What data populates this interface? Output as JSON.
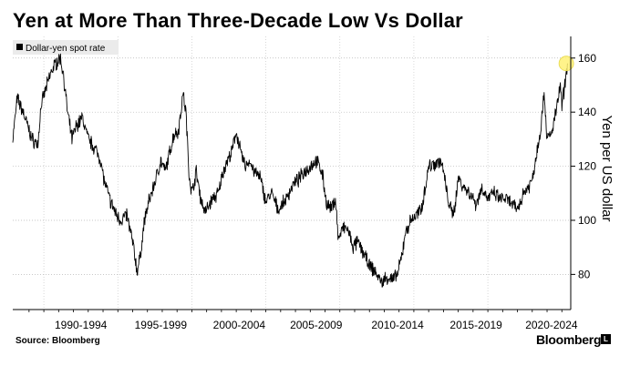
{
  "title": "Yen at More Than Three-Decade Low Vs Dollar",
  "source": "Source: Bloomberg",
  "brand": "Bloomberg",
  "brand_badge": "L",
  "chart_data": {
    "type": "line",
    "title": "Yen at More Than Three-Decade Low Vs Dollar",
    "ylabel": "Yen per US dollar",
    "xlabel": "",
    "ylim": [
      67,
      168
    ],
    "xlim": [
      1986.9,
      2024.6
    ],
    "yticks": [
      80,
      100,
      120,
      140,
      160
    ],
    "xtick_labels": [
      "1990-1994",
      "1995-1999",
      "2000-2004",
      "2005-2009",
      "2010-2014",
      "2015-2019",
      "2020-2024"
    ],
    "xtick_centers": [
      1991.5,
      1996.9,
      2002.2,
      2007.4,
      2012.9,
      2018.2,
      2023.3
    ],
    "grid": true,
    "legend": {
      "position": "top-left",
      "entries": [
        "Dollar-yen spot rate"
      ]
    },
    "highlight": {
      "x": 2024.3,
      "y": 158,
      "color": "#fff176"
    },
    "series": [
      {
        "name": "Dollar-yen spot rate",
        "color": "#000000",
        "x": [
          1986.9,
          1987.2,
          1987.6,
          1987.9,
          1988.2,
          1988.6,
          1988.8,
          1989.1,
          1989.5,
          1989.8,
          1990.1,
          1990.3,
          1990.6,
          1990.9,
          1991.2,
          1991.6,
          1992.0,
          1992.4,
          1992.8,
          1993.1,
          1993.5,
          1993.9,
          1994.2,
          1994.6,
          1994.8,
          1995.0,
          1995.2,
          1995.3,
          1995.5,
          1995.8,
          1996.1,
          1996.5,
          1996.9,
          1997.2,
          1997.5,
          1997.8,
          1998.1,
          1998.4,
          1998.6,
          1998.8,
          1999.0,
          1999.3,
          1999.6,
          1999.9,
          2000.1,
          2000.4,
          2000.8,
          2001.1,
          2001.4,
          2001.7,
          2002.0,
          2002.3,
          2002.6,
          2002.9,
          2003.2,
          2003.6,
          2004.0,
          2004.4,
          2004.8,
          2005.0,
          2005.4,
          2005.8,
          2006.2,
          2006.6,
          2007.0,
          2007.4,
          2007.8,
          2008.1,
          2008.4,
          2008.7,
          2008.9,
          2009.2,
          2009.5,
          2009.9,
          2010.2,
          2010.6,
          2011.0,
          2011.4,
          2011.8,
          2012.2,
          2012.6,
          2012.9,
          2013.2,
          2013.4,
          2013.8,
          2014.2,
          2014.5,
          2014.8,
          2015.0,
          2015.4,
          2015.8,
          2016.0,
          2016.3,
          2016.6,
          2016.8,
          2017.0,
          2017.4,
          2017.8,
          2018.2,
          2018.6,
          2019.0,
          2019.4,
          2019.8,
          2020.2,
          2020.6,
          2021.0,
          2021.4,
          2021.8,
          2022.0,
          2022.3,
          2022.6,
          2022.8,
          2023.0,
          2023.3,
          2023.6,
          2023.9,
          2024.0,
          2024.2,
          2024.4
        ],
        "y": [
          130,
          145,
          140,
          135,
          130,
          128,
          142,
          148,
          155,
          158,
          160,
          155,
          140,
          130,
          135,
          138,
          130,
          127,
          123,
          114,
          107,
          102,
          100,
          102,
          97,
          92,
          85,
          81,
          86,
          100,
          107,
          114,
          122,
          118,
          125,
          132,
          133,
          147,
          140,
          118,
          110,
          118,
          108,
          103,
          105,
          108,
          110,
          118,
          122,
          125,
          133,
          125,
          120,
          122,
          118,
          116,
          107,
          110,
          104,
          105,
          108,
          113,
          115,
          118,
          120,
          122,
          118,
          106,
          104,
          108,
          93,
          97,
          97,
          90,
          92,
          88,
          83,
          81,
          77,
          79,
          78,
          80,
          87,
          95,
          100,
          102,
          104,
          113,
          120,
          121,
          122,
          118,
          108,
          102,
          106,
          116,
          112,
          110,
          106,
          112,
          108,
          110,
          108,
          108,
          106,
          104,
          110,
          113,
          115,
          125,
          135,
          148,
          130,
          132,
          140,
          150,
          142,
          150,
          158
        ]
      }
    ]
  }
}
